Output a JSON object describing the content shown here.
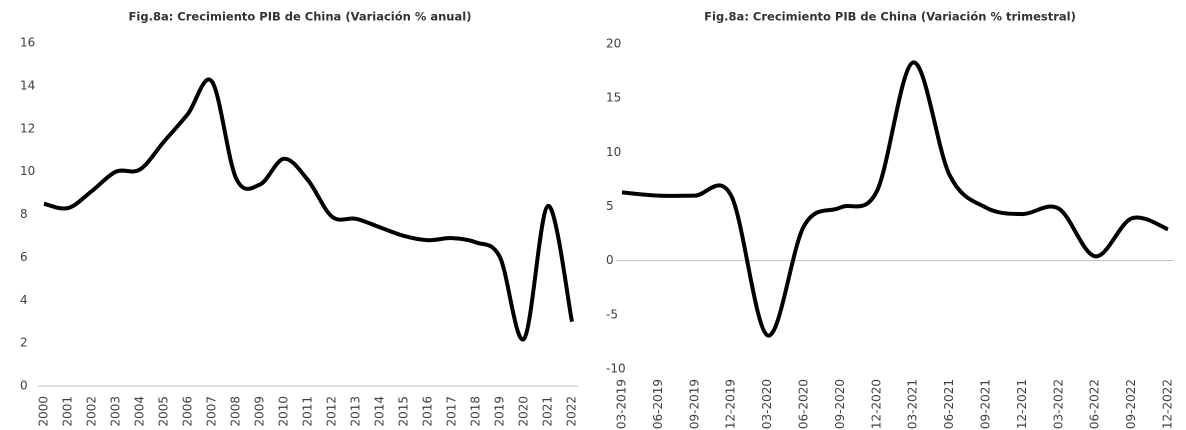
{
  "chart_data": [
    {
      "type": "line",
      "title": "Fig.8a: Crecimiento PIB de China (Variación % anual)",
      "categories": [
        "2000",
        "2001",
        "2002",
        "2003",
        "2004",
        "2005",
        "2006",
        "2007",
        "2008",
        "2009",
        "2010",
        "2011",
        "2012",
        "2013",
        "2014",
        "2015",
        "2016",
        "2017",
        "2018",
        "2019",
        "2020",
        "2021",
        "2022"
      ],
      "values": [
        8.5,
        8.3,
        9.1,
        10.0,
        10.1,
        11.4,
        12.7,
        14.2,
        9.7,
        9.4,
        10.6,
        9.6,
        7.9,
        7.8,
        7.4,
        7.0,
        6.8,
        6.9,
        6.7,
        6.0,
        2.2,
        8.4,
        3.0
      ],
      "color": "#000000",
      "ylim": [
        0,
        16
      ],
      "yticks": [
        0,
        2,
        4,
        6,
        8,
        10,
        12,
        14,
        16
      ],
      "grid": false
    },
    {
      "type": "line",
      "title": "Fig.8a: Crecimiento PIB de China (Variación % trimestral)",
      "categories": [
        "03-2019",
        "06-2019",
        "09-2019",
        "12-2019",
        "03-2020",
        "06-2020",
        "09-2020",
        "12-2020",
        "03-2021",
        "06-2021",
        "09-2021",
        "12-2021",
        "03-2022",
        "06-2022",
        "09-2022",
        "12-2022"
      ],
      "values": [
        6.3,
        6.0,
        6.0,
        6.0,
        -6.9,
        3.2,
        4.9,
        6.4,
        18.3,
        7.9,
        4.9,
        4.3,
        4.8,
        0.4,
        3.9,
        2.9
      ],
      "color": "#000000",
      "ylim": [
        -10,
        20
      ],
      "yticks": [
        -10,
        -5,
        0,
        5,
        10,
        15,
        20
      ],
      "grid": false
    }
  ]
}
